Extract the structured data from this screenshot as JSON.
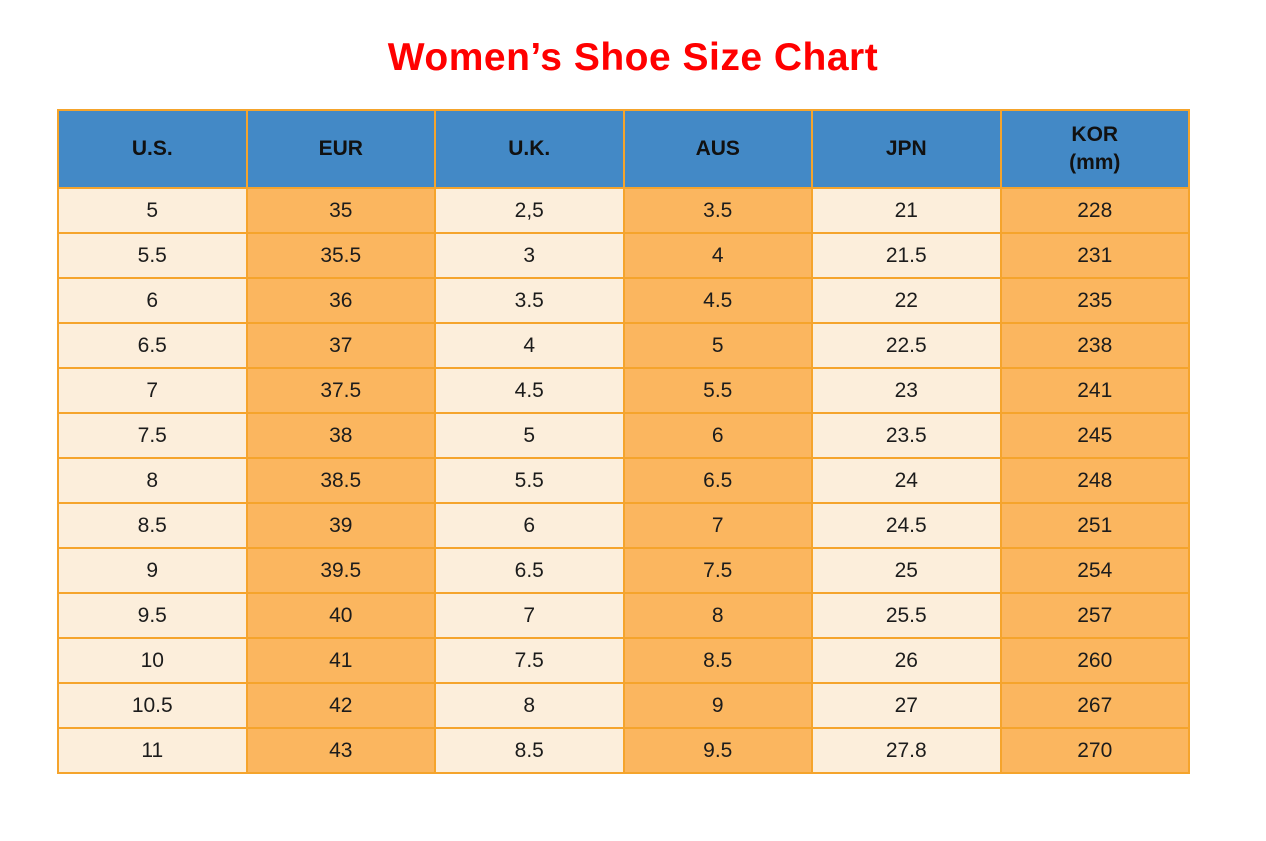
{
  "title": {
    "text": "Women’s Shoe Size Chart",
    "color": "#ff0000"
  },
  "colors": {
    "header_bg": "#4389c6",
    "border": "#f5a42c",
    "col_cream": "#fceedb",
    "col_orange": "#fbb65f",
    "header_text": "#111111",
    "cell_text": "#1c1c1c"
  },
  "chart_data": {
    "type": "table",
    "title": "Women’s Shoe Size Chart",
    "columns": [
      {
        "label": "U.S.",
        "sublabel": ""
      },
      {
        "label": "EUR",
        "sublabel": ""
      },
      {
        "label": "U.K.",
        "sublabel": ""
      },
      {
        "label": "AUS",
        "sublabel": ""
      },
      {
        "label": "JPN",
        "sublabel": ""
      },
      {
        "label": "KOR",
        "sublabel": "(mm)"
      }
    ],
    "rows": [
      [
        "5",
        "35",
        "2,5",
        "3.5",
        "21",
        "228"
      ],
      [
        "5.5",
        "35.5",
        "3",
        "4",
        "21.5",
        "231"
      ],
      [
        "6",
        "36",
        "3.5",
        "4.5",
        "22",
        "235"
      ],
      [
        "6.5",
        "37",
        "4",
        "5",
        "22.5",
        "238"
      ],
      [
        "7",
        "37.5",
        "4.5",
        "5.5",
        "23",
        "241"
      ],
      [
        "7.5",
        "38",
        "5",
        "6",
        "23.5",
        "245"
      ],
      [
        "8",
        "38.5",
        "5.5",
        "6.5",
        "24",
        "248"
      ],
      [
        "8.5",
        "39",
        "6",
        "7",
        "24.5",
        "251"
      ],
      [
        "9",
        "39.5",
        "6.5",
        "7.5",
        "25",
        "254"
      ],
      [
        "9.5",
        "40",
        "7",
        "8",
        "25.5",
        "257"
      ],
      [
        "10",
        "41",
        "7.5",
        "8.5",
        "26",
        "260"
      ],
      [
        "10.5",
        "42",
        "8",
        "9",
        "27",
        "267"
      ],
      [
        "11",
        "43",
        "8.5",
        "9.5",
        "27.8",
        "270"
      ]
    ]
  }
}
